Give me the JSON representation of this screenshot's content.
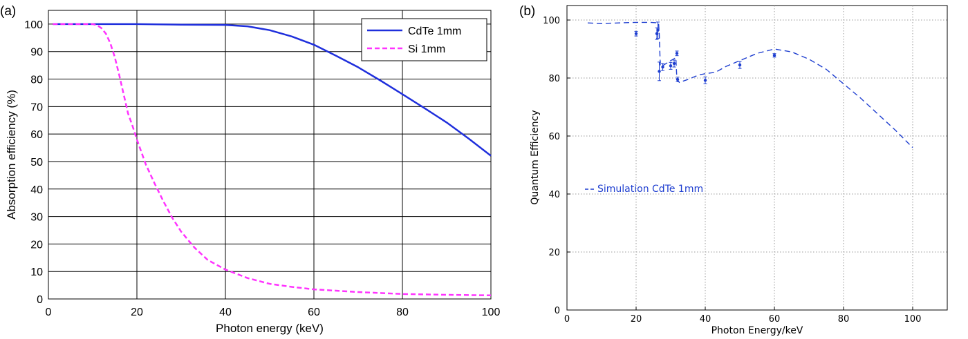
{
  "chart_data": [
    {
      "panel_label": "(a)",
      "type": "line",
      "xlabel": "Photon energy (keV)",
      "ylabel": "Absorption efficiency (%)",
      "xlim": [
        0,
        100
      ],
      "ylim": [
        0,
        105
      ],
      "xticks": [
        0,
        20,
        40,
        60,
        80,
        100
      ],
      "yticks": [
        0,
        10,
        20,
        30,
        40,
        50,
        60,
        70,
        80,
        90,
        100
      ],
      "grid": true,
      "legend_position": "top-right",
      "series": [
        {
          "name": "CdTe 1mm",
          "color": "#1f2fdc",
          "style": "solid",
          "x": [
            1,
            10,
            20,
            30,
            40,
            45,
            50,
            55,
            60,
            65,
            70,
            75,
            80,
            85,
            90,
            95,
            100
          ],
          "y": [
            100,
            100,
            100,
            99.8,
            99.7,
            99.2,
            97.8,
            95.5,
            92.5,
            88.5,
            84.3,
            79.5,
            74.5,
            69.4,
            64.2,
            58.3,
            52.1
          ]
        },
        {
          "name": "Si 1mm",
          "color": "#ff33ff",
          "style": "dashed",
          "x": [
            1,
            5,
            10,
            11,
            12,
            13,
            14,
            15,
            16,
            17,
            18,
            19,
            20,
            22,
            24,
            26,
            28,
            30,
            33,
            36,
            40,
            45,
            50,
            55,
            60,
            70,
            80,
            90,
            100
          ],
          "y": [
            100,
            100,
            100,
            99.6,
            98.5,
            96.5,
            93,
            88,
            81.5,
            74.5,
            67.5,
            63,
            58,
            49,
            42,
            35.5,
            29.5,
            24.5,
            18.7,
            14.2,
            10.7,
            7.6,
            5.5,
            4.4,
            3.5,
            2.5,
            1.8,
            1.5,
            1.3
          ]
        }
      ]
    },
    {
      "panel_label": "(b)",
      "type": "line",
      "xlabel": "Photon Energy/keV",
      "ylabel": "Quantum Efficiency",
      "xlim": [
        0,
        110
      ],
      "ylim": [
        0,
        105
      ],
      "xticks": [
        0,
        20,
        40,
        60,
        80,
        100
      ],
      "yticks": [
        0,
        20,
        40,
        60,
        80,
        100
      ],
      "grid": true,
      "legend_position": "center-left",
      "series": [
        {
          "name": "Simulation CdTe 1mm",
          "color": "#1f3fd0",
          "style": "dashed",
          "x": [
            6,
            10,
            15,
            20,
            24,
            26.5,
            26.7,
            27,
            28,
            30,
            31.5,
            31.8,
            32.5,
            35,
            38,
            40,
            43,
            46,
            50,
            55,
            60,
            65,
            70,
            75,
            80,
            85,
            90,
            95,
            100
          ],
          "y": [
            99,
            98.8,
            99,
            99.2,
            99.2,
            99,
            95,
            84,
            84.5,
            86,
            87,
            79.5,
            78.5,
            79.5,
            81,
            81.5,
            82,
            84,
            86,
            88.5,
            90,
            89,
            86.5,
            83,
            78,
            73,
            67.5,
            62,
            56
          ]
        },
        {
          "name": "",
          "type": "errorbar",
          "color": "#1f3fd0",
          "x": [
            20,
            26,
            26.3,
            26.7,
            27.7,
            30,
            31,
            31.8,
            32,
            40,
            50,
            60
          ],
          "y": [
            95.3,
            95.3,
            96.5,
            82.3,
            83.8,
            84.2,
            85,
            88.5,
            79.5,
            79.2,
            84.5,
            87.8
          ],
          "err": [
            0.8,
            2.0,
            2.8,
            3.2,
            1.2,
            1.2,
            1.2,
            0.8,
            0.8,
            1.2,
            1.2,
            0.6
          ]
        }
      ]
    }
  ]
}
